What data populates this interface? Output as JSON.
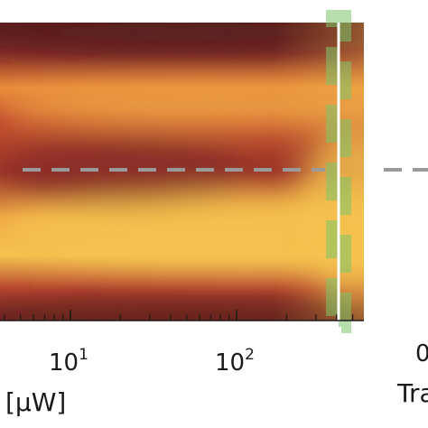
{
  "chart_data": [
    {
      "type": "heatmap",
      "title": "",
      "xlabel": "[μW]",
      "x_scale": "log",
      "x_tick_labels": [
        {
          "value": 10,
          "base": "10",
          "exp": "1"
        },
        {
          "value": 100,
          "base": "10",
          "exp": "2"
        }
      ],
      "xlim": [
        0.8,
        500
      ],
      "colormap": [
        "#5a1e1e",
        "#8c2e2a",
        "#c4502f",
        "#e98a3a",
        "#f5c24f"
      ],
      "overlays": {
        "horizontal_dashed_line": {
          "color": "#9a9a9a"
        },
        "vertical_line": {
          "x": 350,
          "color": "#ffffff"
        },
        "vertical_dashed_band": {
          "x": 350,
          "color": "#7cc46a"
        }
      }
    },
    {
      "type": "line",
      "title": "",
      "xlabel": "Tra",
      "x_tick_labels": [
        "0"
      ],
      "overlays": {
        "horizontal_dashed_line": {
          "color": "#9a9a9a"
        }
      }
    }
  ]
}
